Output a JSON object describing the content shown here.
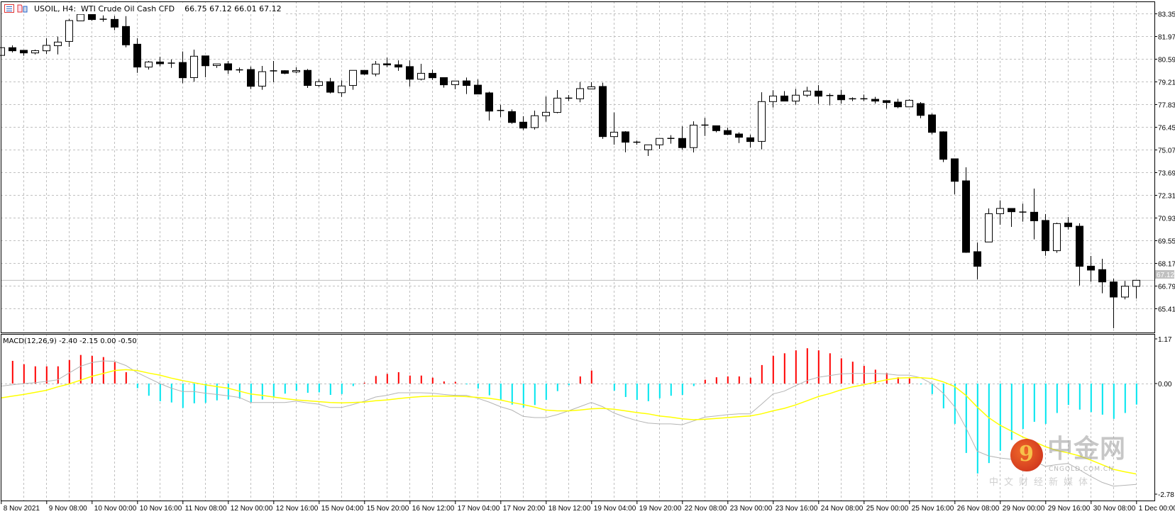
{
  "header": {
    "symbol_line": "USOIL, H4:  WTI Crude Oil Cash CFD",
    "ohlc": "66.75 67.12 66.01 67.12",
    "icons": [
      "list-icon",
      "chart-template-icon"
    ]
  },
  "macd_panel": {
    "title": "MACD(12,26,9) -2.40 -2.15 0.00 -0.50"
  },
  "watermark": {
    "logo_text": "中金网",
    "domain": "CNGOLD.COM.CN",
    "slogan": "中文财经新媒体"
  },
  "colors": {
    "bull_body": "#ffffff",
    "bear_body": "#000000",
    "hist_positive": "#ff0000",
    "hist_negative": "#00e5ee",
    "macd_line": "#b4b4b4",
    "signal_line": "#ffff00",
    "grid": "#c0c0c0",
    "price_line": "#c0c0c0"
  },
  "chart_data": [
    {
      "type": "candlestick",
      "title": "USOIL, H4",
      "current_price": 67.12,
      "current_price_label": "67.12",
      "y_ticks": [
        "83.35",
        "81.97",
        "80.59",
        "79.21",
        "77.83",
        "76.45",
        "75.07",
        "73.69",
        "72.31",
        "70.93",
        "69.55",
        "68.17",
        "66.79",
        "65.41"
      ],
      "x_ticks": [
        "8 Nov 2021",
        "9 Nov 08:00",
        "10 Nov 00:00",
        "10 Nov 16:00",
        "11 Nov 08:00",
        "12 Nov 00:00",
        "12 Nov 16:00",
        "15 Nov 04:00",
        "15 Nov 20:00",
        "16 Nov 12:00",
        "17 Nov 04:00",
        "17 Nov 20:00",
        "18 Nov 12:00",
        "19 Nov 04:00",
        "19 Nov 20:00",
        "22 Nov 08:00",
        "23 Nov 00:00",
        "23 Nov 16:00",
        "24 Nov 08:00",
        "25 Nov 00:00",
        "25 Nov 16:00",
        "26 Nov 08:00",
        "29 Nov 00:00",
        "29 Nov 16:00",
        "30 Nov 08:00",
        "1 Dec 00:00"
      ],
      "grid": true,
      "ohlc": [
        [
          80.8,
          81.3,
          80.7,
          81.27
        ],
        [
          81.27,
          81.41,
          80.98,
          81.08
        ],
        [
          81.11,
          81.11,
          80.78,
          80.95
        ],
        [
          80.95,
          81.15,
          80.86,
          81.09
        ],
        [
          81.08,
          81.84,
          80.89,
          81.41
        ],
        [
          81.39,
          81.94,
          80.86,
          81.61
        ],
        [
          81.65,
          83.02,
          81.32,
          82.92
        ],
        [
          82.9,
          83.5,
          82.9,
          83.3
        ],
        [
          83.3,
          83.3,
          82.9,
          82.98
        ],
        [
          82.99,
          83.23,
          82.85,
          83.0
        ],
        [
          82.99,
          83.2,
          82.33,
          82.52
        ],
        [
          82.56,
          83.19,
          81.29,
          81.44
        ],
        [
          81.48,
          81.84,
          79.74,
          80.09
        ],
        [
          80.09,
          80.46,
          79.94,
          80.4
        ],
        [
          80.4,
          80.72,
          80.14,
          80.29
        ],
        [
          80.33,
          80.55,
          80.04,
          80.33
        ],
        [
          80.37,
          81.04,
          79.11,
          79.44
        ],
        [
          79.45,
          81.15,
          79.2,
          80.75
        ],
        [
          80.77,
          80.77,
          79.47,
          80.17
        ],
        [
          80.18,
          80.28,
          80.04,
          80.28
        ],
        [
          80.29,
          80.46,
          79.68,
          79.91
        ],
        [
          79.92,
          80.06,
          79.74,
          79.91
        ],
        [
          79.94,
          80.12,
          78.75,
          78.92
        ],
        [
          78.93,
          80.16,
          78.71,
          79.81
        ],
        [
          79.86,
          80.46,
          79.17,
          79.8
        ],
        [
          79.87,
          79.9,
          79.66,
          79.71
        ],
        [
          79.8,
          80.07,
          79.71,
          79.88
        ],
        [
          79.89,
          79.97,
          78.82,
          78.97
        ],
        [
          78.97,
          79.35,
          78.88,
          79.2
        ],
        [
          79.2,
          79.43,
          78.49,
          78.56
        ],
        [
          78.53,
          79.28,
          78.28,
          78.94
        ],
        [
          78.97,
          79.89,
          78.71,
          79.89
        ],
        [
          79.89,
          79.89,
          79.61,
          79.66
        ],
        [
          79.67,
          80.46,
          79.53,
          80.27
        ],
        [
          80.29,
          80.66,
          80.09,
          80.22
        ],
        [
          80.23,
          80.5,
          79.86,
          80.09
        ],
        [
          80.12,
          80.5,
          78.91,
          79.35
        ],
        [
          79.35,
          80.29,
          79.28,
          79.71
        ],
        [
          79.71,
          79.94,
          79.31,
          79.44
        ],
        [
          79.45,
          79.45,
          78.84,
          79.01
        ],
        [
          79.02,
          79.24,
          78.74,
          79.24
        ],
        [
          79.25,
          79.45,
          78.45,
          78.97
        ],
        [
          78.99,
          79.34,
          78.45,
          78.45
        ],
        [
          78.52,
          78.59,
          76.84,
          77.41
        ],
        [
          77.45,
          77.8,
          77.05,
          77.4
        ],
        [
          77.38,
          77.51,
          76.64,
          76.72
        ],
        [
          76.74,
          77.1,
          76.26,
          76.38
        ],
        [
          76.41,
          77.44,
          76.29,
          77.13
        ],
        [
          77.13,
          78.3,
          76.77,
          77.34
        ],
        [
          77.33,
          78.69,
          77.28,
          78.2
        ],
        [
          78.18,
          78.39,
          78.02,
          78.2
        ],
        [
          78.16,
          79.18,
          77.95,
          78.78
        ],
        [
          78.76,
          79.18,
          78.76,
          78.89
        ],
        [
          78.91,
          79.14,
          75.72,
          75.86
        ],
        [
          75.86,
          77.33,
          75.37,
          76.13
        ],
        [
          76.15,
          76.19,
          74.91,
          75.52
        ],
        [
          75.52,
          75.62,
          75.37,
          75.5
        ],
        [
          75.06,
          75.36,
          74.68,
          75.36
        ],
        [
          75.36,
          75.75,
          75.11,
          75.75
        ],
        [
          75.75,
          75.95,
          75.43,
          75.75
        ],
        [
          75.75,
          76.49,
          75.07,
          75.19
        ],
        [
          75.19,
          76.79,
          74.9,
          76.56
        ],
        [
          76.56,
          77.0,
          75.9,
          76.51
        ],
        [
          76.52,
          76.52,
          76.12,
          76.22
        ],
        [
          76.23,
          76.41,
          75.95,
          75.99
        ],
        [
          76.02,
          76.12,
          75.47,
          75.82
        ],
        [
          75.79,
          75.98,
          75.2,
          75.56
        ],
        [
          75.57,
          78.56,
          75.08,
          77.99
        ],
        [
          77.99,
          78.68,
          77.63,
          78.33
        ],
        [
          78.33,
          78.63,
          78.02,
          78.02
        ],
        [
          78.02,
          78.76,
          77.8,
          78.38
        ],
        [
          78.38,
          78.89,
          78.27,
          78.63
        ],
        [
          78.63,
          78.99,
          77.85,
          78.32
        ],
        [
          78.36,
          78.49,
          77.76,
          78.35
        ],
        [
          78.38,
          78.71,
          77.87,
          78.1
        ],
        [
          78.16,
          78.25,
          78.02,
          78.1
        ],
        [
          78.16,
          78.42,
          78.02,
          78.1
        ],
        [
          78.13,
          78.28,
          77.87,
          78.02
        ],
        [
          78.05,
          78.05,
          77.56,
          77.93
        ],
        [
          77.96,
          78.16,
          77.59,
          77.67
        ],
        [
          77.67,
          78.13,
          77.67,
          78.07
        ],
        [
          77.87,
          77.96,
          76.98,
          77.15
        ],
        [
          77.18,
          77.27,
          76.0,
          76.12
        ],
        [
          76.15,
          76.18,
          74.31,
          74.48
        ],
        [
          74.51,
          74.51,
          72.35,
          73.14
        ],
        [
          73.17,
          73.99,
          68.79,
          68.82
        ],
        [
          68.86,
          69.42,
          67.18,
          67.97
        ],
        [
          69.45,
          71.49,
          69.45,
          71.17
        ],
        [
          71.17,
          71.98,
          70.5,
          71.49
        ],
        [
          71.49,
          71.49,
          70.37,
          71.29
        ],
        [
          71.27,
          71.78,
          70.69,
          71.26
        ],
        [
          71.26,
          72.7,
          69.61,
          70.74
        ],
        [
          70.76,
          71.15,
          68.61,
          68.92
        ],
        [
          68.92,
          70.63,
          68.79,
          70.57
        ],
        [
          70.6,
          70.97,
          70.2,
          70.38
        ],
        [
          70.41,
          70.59,
          66.8,
          67.97
        ],
        [
          67.98,
          68.6,
          67.03,
          67.74
        ],
        [
          67.77,
          68.43,
          66.33,
          67.02
        ],
        [
          67.02,
          67.22,
          64.2,
          66.1
        ],
        [
          66.1,
          67.08,
          65.96,
          66.76
        ],
        [
          66.75,
          67.12,
          66.01,
          67.12
        ]
      ]
    },
    {
      "type": "bar+line",
      "title": "MACD(12,26,9)",
      "ylim": [
        -2.78,
        1.17
      ],
      "y_ticks": [
        "1.17",
        "0.00",
        "-2.78"
      ],
      "histogram": [
        null,
        0.54,
        0.46,
        0.41,
        0.41,
        0.41,
        0.56,
        0.68,
        0.66,
        0.63,
        0.51,
        0.27,
        -0.11,
        -0.29,
        -0.42,
        -0.45,
        -0.58,
        -0.47,
        -0.46,
        -0.4,
        -0.38,
        -0.36,
        -0.45,
        -0.38,
        -0.33,
        -0.24,
        -0.17,
        -0.22,
        -0.21,
        -0.27,
        -0.25,
        -0.06,
        0.02,
        0.18,
        0.23,
        0.27,
        0.19,
        0.19,
        0.14,
        0.05,
        0.04,
        -0.02,
        -0.12,
        -0.28,
        -0.39,
        -0.5,
        -0.57,
        -0.51,
        -0.39,
        -0.18,
        -0.04,
        0.17,
        0.31,
        0,
        -0.17,
        -0.32,
        -0.39,
        -0.42,
        -0.35,
        -0.29,
        -0.27,
        -0.06,
        0.09,
        0.15,
        0.17,
        0.17,
        0.14,
        0.44,
        0.66,
        0.72,
        0.79,
        0.84,
        0.79,
        0.72,
        0.6,
        0.52,
        0.42,
        0.33,
        0.25,
        0.15,
        0.12,
        -0.02,
        -0.25,
        -0.59,
        -0.96,
        -1.65,
        -2.14,
        -1.89,
        -1.6,
        -1.34,
        -1.08,
        -0.91,
        -0.96,
        -0.7,
        -0.51,
        -0.62,
        -0.68,
        -0.74,
        -0.84,
        -0.7,
        -0.5
      ],
      "macd": [
        -0.06,
        -0.03,
        0,
        0.02,
        0.05,
        0.09,
        0.25,
        0.41,
        0.5,
        0.54,
        0.53,
        0.43,
        0.26,
        0.13,
        0,
        -0.11,
        -0.19,
        -0.19,
        -0.23,
        -0.26,
        -0.29,
        -0.33,
        -0.45,
        -0.45,
        -0.45,
        -0.45,
        -0.42,
        -0.46,
        -0.49,
        -0.57,
        -0.57,
        -0.5,
        -0.42,
        -0.32,
        -0.28,
        -0.22,
        -0.22,
        -0.22,
        -0.23,
        -0.26,
        -0.28,
        -0.28,
        -0.35,
        -0.44,
        -0.55,
        -0.63,
        -0.78,
        -0.81,
        -0.81,
        -0.74,
        -0.65,
        -0.55,
        -0.45,
        -0.55,
        -0.7,
        -0.8,
        -0.88,
        -0.94,
        -0.96,
        -0.96,
        -0.98,
        -0.89,
        -0.8,
        -0.77,
        -0.74,
        -0.72,
        -0.72,
        -0.49,
        -0.25,
        -0.18,
        -0.05,
        0.07,
        0.15,
        0.19,
        0.23,
        0.24,
        0.24,
        0.24,
        0.23,
        0.2,
        0.2,
        0.14,
        0,
        -0.23,
        -0.55,
        -1.05,
        -1.61,
        -1.72,
        -1.77,
        -1.8,
        -1.81,
        -1.84,
        -1.97,
        -1.93,
        -1.9,
        -2.05,
        -2.21,
        -2.35,
        -2.44,
        -2.42,
        -2.4
      ],
      "signal": [
        -0.34,
        -0.3,
        -0.26,
        -0.21,
        -0.16,
        -0.08,
        -0.01,
        0.08,
        0.17,
        0.24,
        0.31,
        0.33,
        0.31,
        0.25,
        0.2,
        0.13,
        0.07,
        0.02,
        -0.03,
        -0.07,
        -0.11,
        -0.18,
        -0.25,
        -0.28,
        -0.32,
        -0.36,
        -0.39,
        -0.41,
        -0.43,
        -0.45,
        -0.46,
        -0.45,
        -0.44,
        -0.41,
        -0.39,
        -0.36,
        -0.33,
        -0.31,
        -0.3,
        -0.3,
        -0.3,
        -0.31,
        -0.33,
        -0.35,
        -0.39,
        -0.45,
        -0.5,
        -0.56,
        -0.63,
        -0.65,
        -0.65,
        -0.63,
        -0.6,
        -0.59,
        -0.61,
        -0.65,
        -0.69,
        -0.72,
        -0.77,
        -0.8,
        -0.84,
        -0.86,
        -0.85,
        -0.83,
        -0.81,
        -0.79,
        -0.77,
        -0.72,
        -0.65,
        -0.59,
        -0.51,
        -0.41,
        -0.31,
        -0.24,
        -0.15,
        -0.08,
        -0.03,
        0.03,
        0.09,
        0.13,
        0.14,
        0.14,
        0.12,
        0.04,
        -0.07,
        -0.28,
        -0.56,
        -0.81,
        -0.99,
        -1.13,
        -1.27,
        -1.38,
        -1.5,
        -1.59,
        -1.65,
        -1.72,
        -1.82,
        -1.93,
        -2.04,
        -2.1,
        -2.15
      ]
    }
  ]
}
